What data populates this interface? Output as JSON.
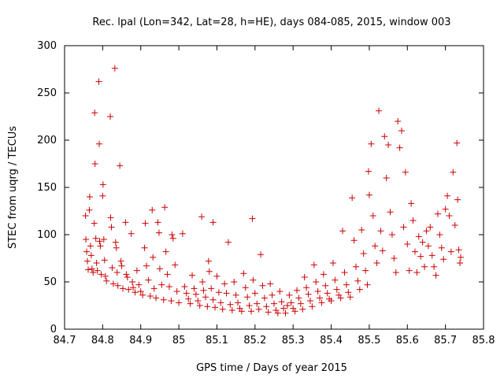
{
  "chart_data": {
    "type": "scatter",
    "title": "Rec. lpal (Lon=342, Lat=28, h=HE), days 084-085, 2015, window 003",
    "xlabel": "GPS time / Days of year 2015",
    "ylabel": "STEC from uqrg / TECUs",
    "xlim": [
      84.7,
      85.8
    ],
    "ylim": [
      0,
      300
    ],
    "x_ticks": [
      "84.7",
      "84.8",
      "84.9",
      "85",
      "85.1",
      "85.2",
      "85.3",
      "85.4",
      "85.5",
      "85.6",
      "85.7",
      "85.8"
    ],
    "y_ticks": [
      "0",
      "50",
      "100",
      "150",
      "200",
      "250",
      "300"
    ],
    "grid": false,
    "marker": "plus",
    "color": "#cc0000",
    "series": [
      {
        "name": "",
        "points": [
          [
            84.755,
            120
          ],
          [
            84.756,
            95
          ],
          [
            84.758,
            82
          ],
          [
            84.76,
            72
          ],
          [
            84.762,
            63
          ],
          [
            84.765,
            126
          ],
          [
            84.766,
            140
          ],
          [
            84.768,
            88
          ],
          [
            84.77,
            78
          ],
          [
            84.772,
            64
          ],
          [
            84.775,
            60
          ],
          [
            84.778,
            112
          ],
          [
            84.779,
            229
          ],
          [
            84.78,
            175
          ],
          [
            84.782,
            96
          ],
          [
            84.784,
            70
          ],
          [
            84.786,
            62
          ],
          [
            84.79,
            262
          ],
          [
            84.791,
            196
          ],
          [
            84.792,
            93
          ],
          [
            84.794,
            88
          ],
          [
            84.796,
            58
          ],
          [
            84.8,
            141
          ],
          [
            84.801,
            153
          ],
          [
            84.803,
            95
          ],
          [
            84.805,
            73
          ],
          [
            84.807,
            56
          ],
          [
            84.81,
            51
          ],
          [
            84.82,
            225
          ],
          [
            84.821,
            118
          ],
          [
            84.823,
            108
          ],
          [
            84.825,
            65
          ],
          [
            84.828,
            48
          ],
          [
            84.832,
            276
          ],
          [
            84.834,
            92
          ],
          [
            84.836,
            86
          ],
          [
            84.838,
            60
          ],
          [
            84.84,
            46
          ],
          [
            84.845,
            173
          ],
          [
            84.848,
            72
          ],
          [
            84.85,
            67
          ],
          [
            84.853,
            43
          ],
          [
            84.86,
            113
          ],
          [
            84.862,
            58
          ],
          [
            84.865,
            55
          ],
          [
            84.868,
            42
          ],
          [
            84.875,
            101
          ],
          [
            84.878,
            50
          ],
          [
            84.88,
            44
          ],
          [
            84.885,
            39
          ],
          [
            84.89,
            62
          ],
          [
            84.895,
            47
          ],
          [
            84.9,
            40
          ],
          [
            84.905,
            36
          ],
          [
            84.91,
            86
          ],
          [
            84.912,
            112
          ],
          [
            84.915,
            67
          ],
          [
            84.92,
            52
          ],
          [
            84.925,
            35
          ],
          [
            84.93,
            126
          ],
          [
            84.932,
            76
          ],
          [
            84.935,
            43
          ],
          [
            84.94,
            33
          ],
          [
            84.945,
            113
          ],
          [
            84.948,
            102
          ],
          [
            84.95,
            64
          ],
          [
            84.955,
            47
          ],
          [
            84.96,
            31
          ],
          [
            84.963,
            129
          ],
          [
            84.966,
            82
          ],
          [
            84.97,
            58
          ],
          [
            84.975,
            45
          ],
          [
            84.98,
            30
          ],
          [
            84.982,
            100
          ],
          [
            84.985,
            96
          ],
          [
            84.99,
            68
          ],
          [
            84.995,
            40
          ],
          [
            85.0,
            28
          ],
          [
            85.01,
            101
          ],
          [
            85.015,
            45
          ],
          [
            85.02,
            38
          ],
          [
            85.025,
            32
          ],
          [
            85.03,
            27
          ],
          [
            85.035,
            57
          ],
          [
            85.04,
            43
          ],
          [
            85.045,
            37
          ],
          [
            85.05,
            30
          ],
          [
            85.055,
            25
          ],
          [
            85.06,
            119
          ],
          [
            85.062,
            50
          ],
          [
            85.065,
            41
          ],
          [
            85.07,
            34
          ],
          [
            85.075,
            24
          ],
          [
            85.078,
            72
          ],
          [
            85.08,
            61
          ],
          [
            85.085,
            43
          ],
          [
            85.09,
            31
          ],
          [
            85.095,
            23
          ],
          [
            85.09,
            113
          ],
          [
            85.1,
            56
          ],
          [
            85.105,
            39
          ],
          [
            85.11,
            28
          ],
          [
            85.115,
            21
          ],
          [
            85.12,
            48
          ],
          [
            85.125,
            38
          ],
          [
            85.13,
            92
          ],
          [
            85.135,
            26
          ],
          [
            85.14,
            20
          ],
          [
            85.145,
            50
          ],
          [
            85.15,
            36
          ],
          [
            85.155,
            28
          ],
          [
            85.16,
            22
          ],
          [
            85.165,
            19
          ],
          [
            85.17,
            59
          ],
          [
            85.175,
            44
          ],
          [
            85.18,
            34
          ],
          [
            85.185,
            25
          ],
          [
            85.19,
            19
          ],
          [
            85.193,
            117
          ],
          [
            85.195,
            52
          ],
          [
            85.2,
            38
          ],
          [
            85.205,
            27
          ],
          [
            85.21,
            21
          ],
          [
            85.215,
            79
          ],
          [
            85.22,
            46
          ],
          [
            85.225,
            33
          ],
          [
            85.23,
            24
          ],
          [
            85.235,
            18
          ],
          [
            85.24,
            48
          ],
          [
            85.245,
            36
          ],
          [
            85.25,
            27
          ],
          [
            85.255,
            20
          ],
          [
            85.26,
            17
          ],
          [
            85.265,
            40
          ],
          [
            85.27,
            29
          ],
          [
            85.275,
            22
          ],
          [
            85.28,
            17
          ],
          [
            85.285,
            25
          ],
          [
            85.29,
            36
          ],
          [
            85.295,
            28
          ],
          [
            85.3,
            22
          ],
          [
            85.305,
            19
          ],
          [
            85.31,
            41
          ],
          [
            85.315,
            33
          ],
          [
            85.32,
            27
          ],
          [
            85.325,
            21
          ],
          [
            85.33,
            55
          ],
          [
            85.335,
            44
          ],
          [
            85.34,
            37
          ],
          [
            85.345,
            30
          ],
          [
            85.35,
            24
          ],
          [
            85.355,
            68
          ],
          [
            85.36,
            50
          ],
          [
            85.365,
            40
          ],
          [
            85.37,
            33
          ],
          [
            85.375,
            28
          ],
          [
            85.38,
            58
          ],
          [
            85.385,
            46
          ],
          [
            85.39,
            38
          ],
          [
            85.395,
            32
          ],
          [
            85.4,
            30
          ],
          [
            85.405,
            70
          ],
          [
            85.41,
            52
          ],
          [
            85.415,
            42
          ],
          [
            85.42,
            36
          ],
          [
            85.425,
            33
          ],
          [
            85.43,
            104
          ],
          [
            85.435,
            60
          ],
          [
            85.44,
            47
          ],
          [
            85.445,
            39
          ],
          [
            85.45,
            34
          ],
          [
            85.455,
            139
          ],
          [
            85.46,
            94
          ],
          [
            85.465,
            66
          ],
          [
            85.47,
            51
          ],
          [
            85.475,
            42
          ],
          [
            85.48,
            105
          ],
          [
            85.485,
            80
          ],
          [
            85.49,
            62
          ],
          [
            85.495,
            47
          ],
          [
            85.498,
            167
          ],
          [
            85.5,
            142
          ],
          [
            85.505,
            196
          ],
          [
            85.51,
            120
          ],
          [
            85.515,
            88
          ],
          [
            85.52,
            70
          ],
          [
            85.525,
            231
          ],
          [
            85.53,
            104
          ],
          [
            85.535,
            83
          ],
          [
            85.54,
            204
          ],
          [
            85.545,
            160
          ],
          [
            85.55,
            195
          ],
          [
            85.555,
            124
          ],
          [
            85.56,
            100
          ],
          [
            85.565,
            75
          ],
          [
            85.57,
            60
          ],
          [
            85.575,
            220
          ],
          [
            85.58,
            192
          ],
          [
            85.585,
            210
          ],
          [
            85.59,
            108
          ],
          [
            85.595,
            166
          ],
          [
            85.6,
            90
          ],
          [
            85.605,
            62
          ],
          [
            85.61,
            133
          ],
          [
            85.615,
            115
          ],
          [
            85.62,
            82
          ],
          [
            85.625,
            60
          ],
          [
            85.63,
            98
          ],
          [
            85.635,
            77
          ],
          [
            85.64,
            92
          ],
          [
            85.645,
            66
          ],
          [
            85.65,
            104
          ],
          [
            85.655,
            88
          ],
          [
            85.66,
            108
          ],
          [
            85.665,
            78
          ],
          [
            85.67,
            66
          ],
          [
            85.675,
            57
          ],
          [
            85.68,
            122
          ],
          [
            85.685,
            100
          ],
          [
            85.69,
            86
          ],
          [
            85.695,
            74
          ],
          [
            85.7,
            127
          ],
          [
            85.705,
            141
          ],
          [
            85.71,
            120
          ],
          [
            85.715,
            82
          ],
          [
            85.72,
            166
          ],
          [
            85.725,
            110
          ],
          [
            85.73,
            197
          ],
          [
            85.732,
            137
          ],
          [
            85.735,
            84
          ],
          [
            85.738,
            70
          ],
          [
            85.74,
            76
          ]
        ]
      }
    ]
  }
}
